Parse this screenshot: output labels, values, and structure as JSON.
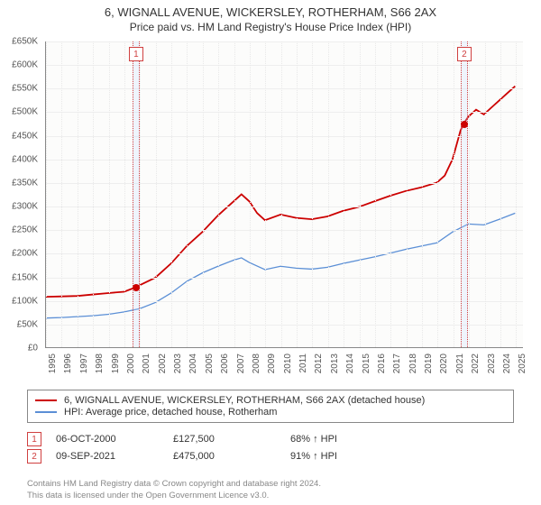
{
  "title": "6, WIGNALL AVENUE, WICKERSLEY, ROTHERHAM, S66 2AX",
  "subtitle": "Price paid vs. HM Land Registry's House Price Index (HPI)",
  "chart": {
    "background_color": "#fcfcfb",
    "grid_color": "#eee",
    "ylim": [
      0,
      650000
    ],
    "ytick_step": 50000,
    "y_tick_labels": [
      "£0",
      "£50K",
      "£100K",
      "£150K",
      "£200K",
      "£250K",
      "£300K",
      "£350K",
      "£400K",
      "£450K",
      "£500K",
      "£550K",
      "£600K",
      "£650K"
    ],
    "x_years": [
      1995,
      1996,
      1997,
      1998,
      1999,
      2000,
      2001,
      2002,
      2003,
      2004,
      2005,
      2006,
      2007,
      2008,
      2009,
      2010,
      2011,
      2012,
      2013,
      2014,
      2015,
      2016,
      2017,
      2018,
      2019,
      2020,
      2021,
      2022,
      2023,
      2024,
      2025
    ],
    "x_domain": [
      1995,
      2025.5
    ],
    "series": [
      {
        "name": "property",
        "color": "#cc0000",
        "width": 1.8,
        "label": "6, WIGNALL AVENUE, WICKERSLEY, ROTHERHAM, S66 2AX (detached house)",
        "points": [
          [
            1995,
            107000
          ],
          [
            1996,
            108000
          ],
          [
            1997,
            109000
          ],
          [
            1998,
            112000
          ],
          [
            1999,
            115000
          ],
          [
            2000,
            118000
          ],
          [
            2000.75,
            127500
          ],
          [
            2001,
            132000
          ],
          [
            2002,
            148000
          ],
          [
            2003,
            178000
          ],
          [
            2004,
            215000
          ],
          [
            2005,
            245000
          ],
          [
            2006,
            280000
          ],
          [
            2007,
            310000
          ],
          [
            2007.5,
            325000
          ],
          [
            2008,
            310000
          ],
          [
            2008.5,
            285000
          ],
          [
            2009,
            270000
          ],
          [
            2010,
            282000
          ],
          [
            2011,
            275000
          ],
          [
            2012,
            272000
          ],
          [
            2013,
            278000
          ],
          [
            2014,
            290000
          ],
          [
            2015,
            298000
          ],
          [
            2016,
            310000
          ],
          [
            2017,
            322000
          ],
          [
            2018,
            332000
          ],
          [
            2019,
            340000
          ],
          [
            2020,
            350000
          ],
          [
            2020.5,
            365000
          ],
          [
            2021,
            400000
          ],
          [
            2021.5,
            460000
          ],
          [
            2021.7,
            475000
          ],
          [
            2022,
            490000
          ],
          [
            2022.5,
            505000
          ],
          [
            2023,
            495000
          ],
          [
            2023.5,
            510000
          ],
          [
            2024,
            525000
          ],
          [
            2024.5,
            540000
          ],
          [
            2025,
            555000
          ]
        ]
      },
      {
        "name": "hpi",
        "color": "#5b8fd6",
        "width": 1.3,
        "label": "HPI: Average price, detached house, Rotherham",
        "points": [
          [
            1995,
            62000
          ],
          [
            1996,
            63000
          ],
          [
            1997,
            65000
          ],
          [
            1998,
            67000
          ],
          [
            1999,
            70000
          ],
          [
            2000,
            75000
          ],
          [
            2001,
            82000
          ],
          [
            2002,
            95000
          ],
          [
            2003,
            115000
          ],
          [
            2004,
            140000
          ],
          [
            2005,
            158000
          ],
          [
            2006,
            172000
          ],
          [
            2007,
            185000
          ],
          [
            2007.5,
            190000
          ],
          [
            2008,
            180000
          ],
          [
            2009,
            165000
          ],
          [
            2010,
            172000
          ],
          [
            2011,
            168000
          ],
          [
            2012,
            166000
          ],
          [
            2013,
            170000
          ],
          [
            2014,
            178000
          ],
          [
            2015,
            185000
          ],
          [
            2016,
            192000
          ],
          [
            2017,
            200000
          ],
          [
            2018,
            208000
          ],
          [
            2019,
            215000
          ],
          [
            2020,
            222000
          ],
          [
            2021,
            245000
          ],
          [
            2022,
            262000
          ],
          [
            2023,
            260000
          ],
          [
            2024,
            272000
          ],
          [
            2025,
            285000
          ]
        ]
      }
    ],
    "markers": [
      {
        "n": "1",
        "year": 2000.75,
        "value": 127500,
        "color": "#cc0000"
      },
      {
        "n": "2",
        "year": 2021.7,
        "value": 475000,
        "color": "#cc0000"
      }
    ]
  },
  "legend": [
    {
      "color": "#cc0000",
      "text": "6, WIGNALL AVENUE, WICKERSLEY, ROTHERHAM, S66 2AX (detached house)"
    },
    {
      "color": "#5b8fd6",
      "text": "HPI: Average price, detached house, Rotherham"
    }
  ],
  "sales": [
    {
      "n": "1",
      "date": "06-OCT-2000",
      "price": "£127,500",
      "note": "68% ↑ HPI"
    },
    {
      "n": "2",
      "date": "09-SEP-2021",
      "price": "£475,000",
      "note": "91% ↑ HPI"
    }
  ],
  "footer_line1": "Contains HM Land Registry data © Crown copyright and database right 2024.",
  "footer_line2": "This data is licensed under the Open Government Licence v3.0."
}
